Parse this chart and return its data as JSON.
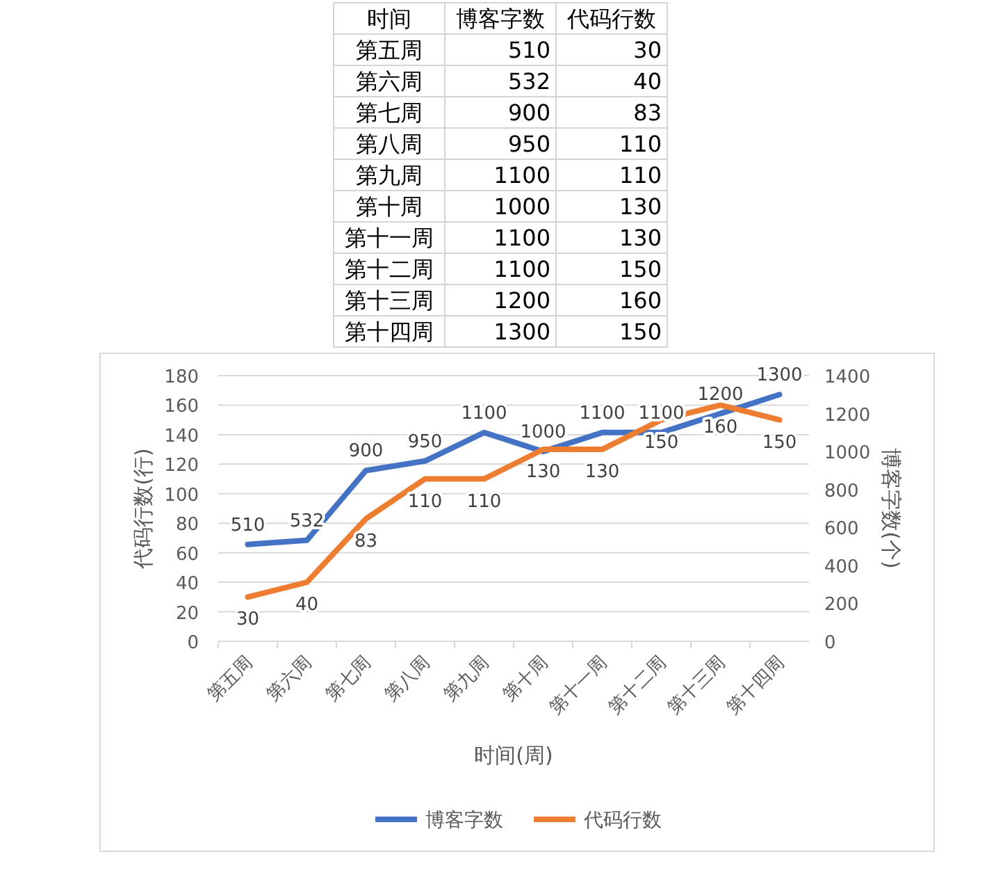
{
  "chart_data": [
    {
      "type": "other",
      "xlabel": "时间",
      "data_labels": true,
      "categories": [
        "第五周",
        "第六周",
        "第七周",
        "第八周",
        "第九周",
        "第十周",
        "第十一周",
        "第十二周",
        "第十三周",
        "第十四周"
      ],
      "series": [
        {
          "name": "博客字数",
          "values": [
            510,
            532,
            900,
            950,
            1100,
            1000,
            1100,
            1100,
            1200,
            1300
          ]
        },
        {
          "name": "代码行数",
          "values": [
            30,
            40,
            83,
            110,
            110,
            130,
            130,
            150,
            160,
            150
          ]
        }
      ]
    },
    {
      "type": "line",
      "xlabel": "时间(周)",
      "ylabel": "代码行数(行)",
      "y2label": "博客字数(个)",
      "categories": [
        "第五周",
        "第六周",
        "第七周",
        "第八周",
        "第九周",
        "第十周",
        "第十一周",
        "第十二周",
        "第十三周",
        "第十四周"
      ],
      "series": [
        {
          "name": "博客字数",
          "color": "#4472c4",
          "axis": "y2",
          "values": [
            510,
            532,
            900,
            950,
            1100,
            1000,
            1100,
            1100,
            1200,
            1300
          ]
        },
        {
          "name": "代码行数",
          "color": "#ed7d31",
          "values": [
            30,
            40,
            83,
            110,
            110,
            130,
            130,
            150,
            160,
            150
          ]
        }
      ],
      "ylim": [
        0,
        180
      ],
      "yticks": [
        0,
        20,
        40,
        60,
        80,
        100,
        120,
        140,
        160,
        180
      ],
      "y2lim": [
        0,
        1400
      ],
      "y2ticks": [
        0,
        200,
        400,
        600,
        800,
        1000,
        1200,
        1400
      ],
      "grid": "y",
      "legend": "bottom",
      "data_labels": true
    }
  ]
}
